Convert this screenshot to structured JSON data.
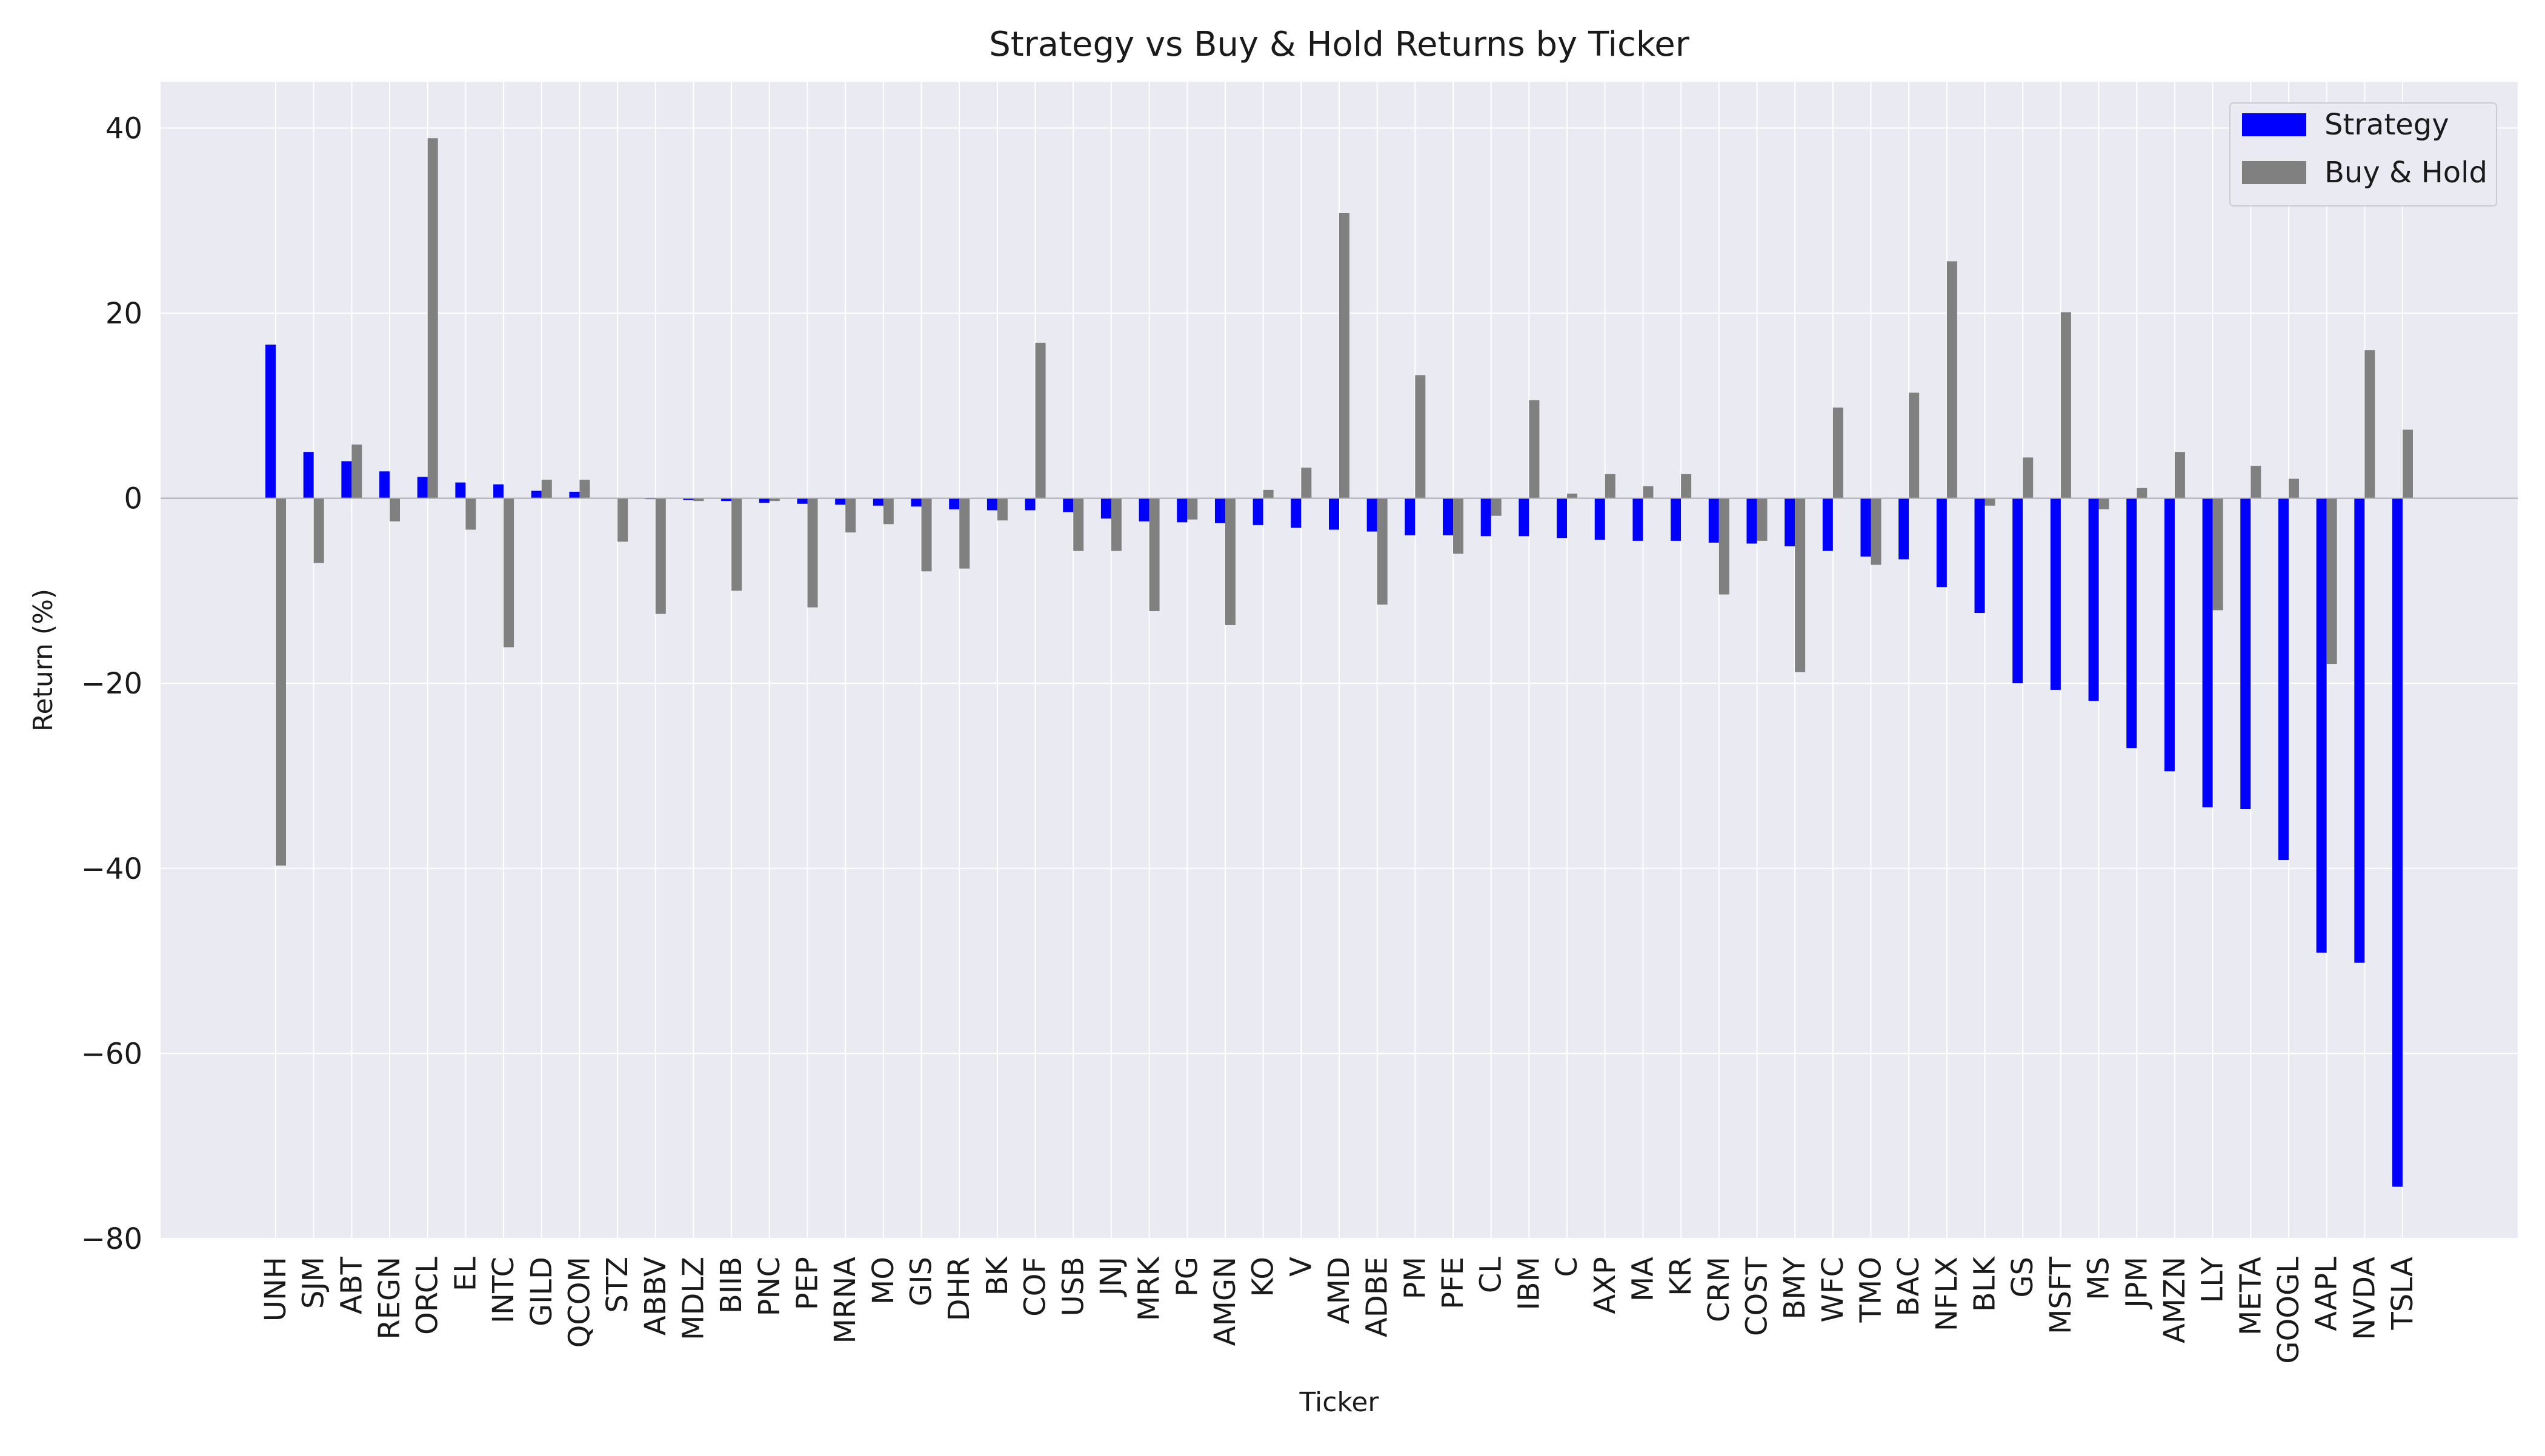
{
  "chart_data": {
    "type": "bar",
    "title": "Strategy vs Buy & Hold Returns by Ticker",
    "xlabel": "Ticker",
    "ylabel": "Return (%)",
    "ylim": [
      -80,
      45
    ],
    "yticks": [
      -80,
      -60,
      -40,
      -20,
      0,
      20,
      40
    ],
    "grid": true,
    "legend": "top-right",
    "categories": [
      "UNH",
      "SJM",
      "ABT",
      "REGN",
      "ORCL",
      "EL",
      "INTC",
      "GILD",
      "QCOM",
      "STZ",
      "ABBV",
      "MDLZ",
      "BIIB",
      "PNC",
      "PEP",
      "MRNA",
      "MO",
      "GIS",
      "DHR",
      "BK",
      "COF",
      "USB",
      "JNJ",
      "MRK",
      "PG",
      "AMGN",
      "KO",
      "V",
      "AMD",
      "ADBE",
      "PM",
      "PFE",
      "CL",
      "IBM",
      "C",
      "AXP",
      "MA",
      "KR",
      "CRM",
      "COST",
      "BMY",
      "WFC",
      "TMO",
      "BAC",
      "NFLX",
      "BLK",
      "GS",
      "MSFT",
      "MS",
      "JPM",
      "AMZN",
      "LLY",
      "META",
      "GOOGL",
      "AAPL",
      "NVDA",
      "TSLA"
    ],
    "series": [
      {
        "name": "Strategy",
        "color": "#0000ff",
        "values": [
          16.6,
          5.0,
          4.0,
          2.9,
          2.3,
          1.7,
          1.5,
          0.8,
          0.7,
          0.0,
          -0.1,
          -0.2,
          -0.3,
          -0.5,
          -0.6,
          -0.7,
          -0.8,
          -0.9,
          -1.2,
          -1.3,
          -1.3,
          -1.5,
          -2.2,
          -2.5,
          -2.6,
          -2.7,
          -2.9,
          -3.2,
          -3.4,
          -3.6,
          -4.0,
          -4.0,
          -4.1,
          -4.1,
          -4.3,
          -4.5,
          -4.6,
          -4.6,
          -4.8,
          -4.9,
          -5.2,
          -5.7,
          -6.3,
          -6.6,
          -9.6,
          -12.4,
          -20.0,
          -20.7,
          -21.9,
          -27.0,
          -29.5,
          -33.4,
          -33.6,
          -39.1,
          -49.1,
          -50.2,
          -74.4
        ]
      },
      {
        "name": "Buy & Hold",
        "color": "#808080",
        "values": [
          -39.7,
          -7.0,
          5.8,
          -2.5,
          38.9,
          -3.4,
          -16.1,
          2.0,
          2.0,
          -4.7,
          -12.5,
          -0.3,
          -10.0,
          -0.3,
          -11.8,
          -3.7,
          -2.8,
          -7.9,
          -7.6,
          -2.4,
          16.8,
          -5.7,
          -5.7,
          -12.2,
          -2.3,
          -13.7,
          0.9,
          3.3,
          30.8,
          -11.5,
          13.3,
          -6.0,
          -1.9,
          10.6,
          0.5,
          2.6,
          1.3,
          2.6,
          -10.4,
          -4.6,
          -18.8,
          9.8,
          -7.2,
          11.4,
          25.6,
          -0.8,
          4.4,
          20.1,
          -1.2,
          1.1,
          5.0,
          -12.1,
          3.5,
          2.1,
          -17.9,
          16.0,
          7.4
        ]
      }
    ]
  }
}
